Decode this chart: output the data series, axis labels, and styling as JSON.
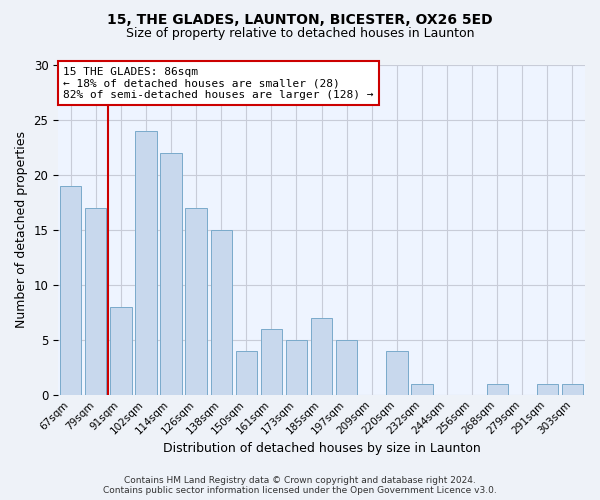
{
  "title": "15, THE GLADES, LAUNTON, BICESTER, OX26 5ED",
  "subtitle": "Size of property relative to detached houses in Launton",
  "xlabel": "Distribution of detached houses by size in Launton",
  "ylabel": "Number of detached properties",
  "bar_color": "#c8d8ed",
  "bar_edge_color": "#7aaacb",
  "categories": [
    "67sqm",
    "79sqm",
    "91sqm",
    "102sqm",
    "114sqm",
    "126sqm",
    "138sqm",
    "150sqm",
    "161sqm",
    "173sqm",
    "185sqm",
    "197sqm",
    "209sqm",
    "220sqm",
    "232sqm",
    "244sqm",
    "256sqm",
    "268sqm",
    "279sqm",
    "291sqm",
    "303sqm"
  ],
  "values": [
    19,
    17,
    8,
    24,
    22,
    17,
    15,
    4,
    6,
    5,
    7,
    5,
    0,
    4,
    1,
    0,
    0,
    1,
    0,
    1,
    1
  ],
  "ylim": [
    0,
    30
  ],
  "yticks": [
    0,
    5,
    10,
    15,
    20,
    25,
    30
  ],
  "vline_x": 2,
  "vline_color": "#cc0000",
  "annotation_text": "15 THE GLADES: 86sqm\n← 18% of detached houses are smaller (28)\n82% of semi-detached houses are larger (128) →",
  "annotation_box_color": "#ffffff",
  "annotation_box_edge_color": "#cc0000",
  "footer_line1": "Contains HM Land Registry data © Crown copyright and database right 2024.",
  "footer_line2": "Contains public sector information licensed under the Open Government Licence v3.0.",
  "background_color": "#eef2f8",
  "plot_background_color": "#eef4ff",
  "grid_color": "#c8ccd8"
}
